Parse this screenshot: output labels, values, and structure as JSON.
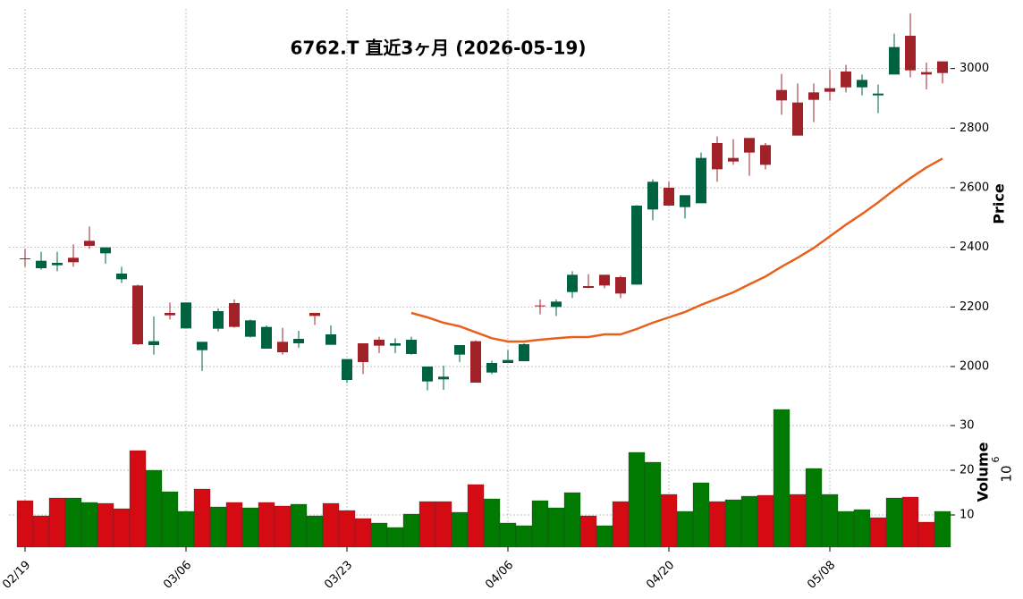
{
  "chart_data": {
    "type": "candlestick",
    "title": "6762.T  直近3ヶ月  (2026-05-19)",
    "categories": [
      "02/19",
      null,
      null,
      null,
      null,
      null,
      null,
      null,
      null,
      null,
      "03/06",
      null,
      null,
      null,
      null,
      null,
      null,
      null,
      null,
      null,
      "03/23",
      null,
      null,
      null,
      null,
      null,
      null,
      null,
      null,
      null,
      "04/06",
      null,
      null,
      null,
      null,
      null,
      null,
      null,
      null,
      null,
      "04/20",
      null,
      null,
      null,
      null,
      null,
      null,
      null,
      null,
      null,
      "05/08",
      null,
      null,
      null,
      null,
      null,
      null,
      null
    ],
    "open": [
      2363,
      2330,
      2340,
      2365,
      2422,
      2380,
      2293,
      2272,
      2072,
      2180,
      2128,
      2055,
      2127,
      2213,
      2100,
      2060,
      2083,
      2078,
      2180,
      2073,
      1955,
      2078,
      2090,
      2070,
      2042,
      1950,
      1957,
      2040,
      2085,
      1980,
      2012,
      2018,
      2205,
      2200,
      2250,
      2270,
      2308,
      2300,
      2275,
      2527,
      2600,
      2535,
      2548,
      2750,
      2700,
      2767,
      2743,
      2928,
      2886,
      2920,
      2934,
      2990,
      2937,
      2910,
      2980,
      3110,
      2988,
      3024
    ],
    "high": [
      2395,
      2385,
      2385,
      2410,
      2470,
      2400,
      2335,
      2275,
      2168,
      2215,
      2215,
      2083,
      2195,
      2225,
      2158,
      2138,
      2130,
      2120,
      2180,
      2138,
      2025,
      2078,
      2100,
      2095,
      2100,
      2000,
      2003,
      2072,
      2088,
      2020,
      2055,
      2078,
      2225,
      2225,
      2320,
      2310,
      2308,
      2305,
      2542,
      2628,
      2620,
      2575,
      2718,
      2772,
      2763,
      2767,
      2750,
      2982,
      2950,
      2950,
      2997,
      3012,
      2980,
      2946,
      3117,
      3185,
      3020,
      3024
    ],
    "low": [
      2335,
      2325,
      2320,
      2335,
      2395,
      2345,
      2280,
      2072,
      2040,
      2158,
      2128,
      1985,
      2118,
      2130,
      2098,
      2060,
      2040,
      2063,
      2140,
      2073,
      1945,
      1975,
      2045,
      2045,
      2040,
      1920,
      1922,
      2015,
      1946,
      1975,
      2012,
      2018,
      2175,
      2170,
      2230,
      2263,
      2263,
      2230,
      2275,
      2491,
      2540,
      2497,
      2548,
      2620,
      2677,
      2640,
      2662,
      2845,
      2775,
      2820,
      2892,
      2920,
      2910,
      2850,
      2980,
      2970,
      2930,
      2950
    ],
    "close": [
      2360,
      2355,
      2348,
      2350,
      2405,
      2400,
      2312,
      2075,
      2085,
      2172,
      2215,
      2083,
      2186,
      2133,
      2155,
      2133,
      2048,
      2093,
      2170,
      2108,
      2025,
      2015,
      2070,
      2078,
      2090,
      2000,
      1966,
      2072,
      1946,
      2012,
      2022,
      2075,
      2203,
      2218,
      2308,
      2264,
      2272,
      2245,
      2540,
      2620,
      2540,
      2575,
      2700,
      2662,
      2688,
      2718,
      2677,
      2893,
      2775,
      2895,
      2922,
      2937,
      2962,
      2916,
      3072,
      2994,
      2980,
      2985
    ],
    "up_color": "#006340",
    "down_color": "#a02128",
    "moving_average": {
      "color": "#e8601c",
      "values": [
        null,
        null,
        null,
        null,
        null,
        null,
        null,
        null,
        null,
        null,
        null,
        null,
        null,
        null,
        null,
        null,
        null,
        null,
        null,
        null,
        null,
        null,
        null,
        null,
        2180,
        2165,
        2147,
        2135,
        2115,
        2095,
        2084,
        2084,
        2090,
        2095,
        2099,
        2099,
        2108,
        2108,
        2126,
        2147,
        2165,
        2183,
        2207,
        2228,
        2249,
        2276,
        2302,
        2335,
        2365,
        2398,
        2437,
        2476,
        2512,
        2551,
        2593,
        2632,
        2668,
        2698
      ]
    },
    "ylabel": "Price",
    "ylim": [
      1910,
      3200
    ],
    "yticks": [
      2000,
      2200,
      2400,
      2600,
      2800,
      3000
    ],
    "grid": true,
    "volume": {
      "ylabel": "Volume",
      "multiplier_base": "10",
      "multiplier_exponent": "6",
      "up_color": "#007a00",
      "down_color": "#d50b14",
      "values": [
        13.2,
        9.8,
        13.8,
        13.8,
        12.8,
        12.6,
        11.4,
        24.4,
        20,
        15.2,
        10.8,
        15.8,
        11.8,
        12.8,
        11.6,
        12.8,
        12,
        12.4,
        9.8,
        12.6,
        11,
        9.2,
        8.2,
        7.2,
        10.2,
        13,
        13,
        10.6,
        16.8,
        13.6,
        8.2,
        7.6,
        13.2,
        11.6,
        15,
        9.8,
        7.6,
        13,
        24,
        21.8,
        14.6,
        10.8,
        17.2,
        13,
        13.4,
        14.2,
        14.4,
        33.6,
        14.6,
        20.4,
        14.6,
        10.8,
        11.2,
        9.4,
        13.8,
        14,
        8.4,
        10.8
      ],
      "ylim": [
        2.8,
        36.2
      ],
      "yticks": [
        10,
        20,
        30
      ]
    }
  }
}
